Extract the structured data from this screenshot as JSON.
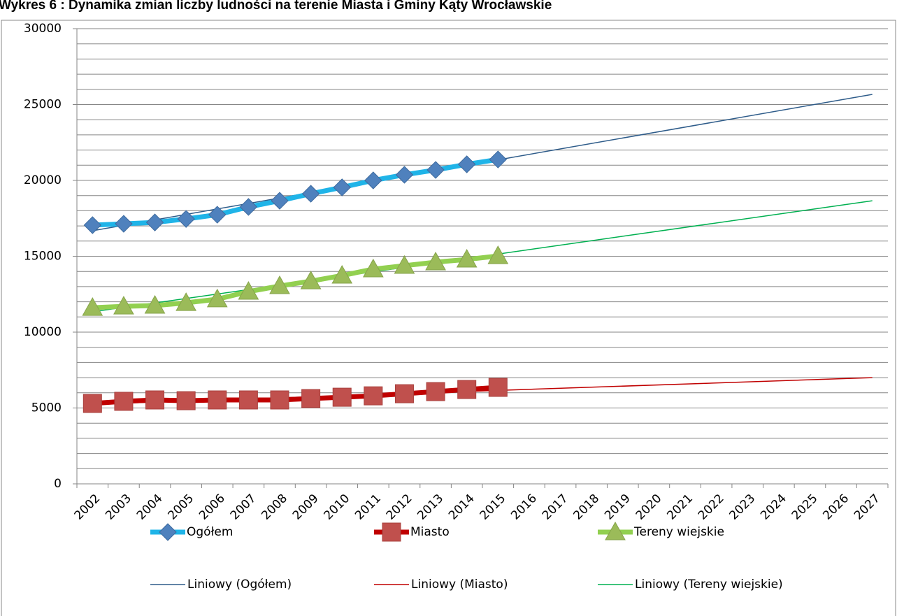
{
  "chart_data": {
    "type": "line",
    "title": "Wykres 6 : Dynamika zmian liczby ludności na terenie Miasta i Gminy Kąty Wrocławskie",
    "categories": [
      "2002",
      "2003",
      "2004",
      "2005",
      "2006",
      "2007",
      "2008",
      "2009",
      "2010",
      "2011",
      "2012",
      "2013",
      "2014",
      "2015",
      "2016",
      "2017",
      "2018",
      "2019",
      "2020",
      "2021",
      "2022",
      "2023",
      "2024",
      "2025",
      "2026",
      "2027"
    ],
    "ylim": [
      0,
      30000
    ],
    "yticks": [
      0,
      5000,
      10000,
      15000,
      20000,
      25000,
      30000
    ],
    "ygrid": [
      0,
      1000,
      2000,
      3000,
      4000,
      5000,
      6000,
      7000,
      8000,
      9000,
      10000,
      11000,
      12000,
      13000,
      14000,
      15000,
      16000,
      17000,
      18000,
      19000,
      20000,
      21000,
      22000,
      23000,
      24000,
      25000,
      26000,
      27000,
      28000,
      29000,
      30000
    ],
    "grid": true,
    "series": [
      {
        "name": "Ogółem",
        "color": "#1fb4e8",
        "marker": "diamond",
        "marker_color": "#4f81bd",
        "values": [
          17050,
          17140,
          17230,
          17460,
          17740,
          18250,
          18660,
          19120,
          19540,
          20000,
          20370,
          20690,
          21060,
          21380,
          null,
          null,
          null,
          null,
          null,
          null,
          null,
          null,
          null,
          null,
          null,
          null
        ]
      },
      {
        "name": "Miasto",
        "color": "#c00000",
        "marker": "square",
        "marker_color": "#c0504d",
        "values": [
          5300,
          5440,
          5530,
          5480,
          5530,
          5530,
          5530,
          5620,
          5710,
          5800,
          5940,
          6080,
          6220,
          6360,
          null,
          null,
          null,
          null,
          null,
          null,
          null,
          null,
          null,
          null,
          null,
          null
        ]
      },
      {
        "name": "Tereny wiejskie",
        "color": "#92d050",
        "marker": "triangle",
        "marker_color": "#9bbb59",
        "values": [
          11610,
          11700,
          11750,
          11930,
          12170,
          12670,
          13040,
          13360,
          13730,
          14150,
          14380,
          14610,
          14790,
          15020,
          null,
          null,
          null,
          null,
          null,
          null,
          null,
          null,
          null,
          null,
          null,
          null
        ]
      }
    ],
    "trendlines": [
      {
        "name": "Liniowy (Ogółem)",
        "color": "#2e5c8a",
        "categories": [
          "2002",
          "2027"
        ],
        "values": [
          16680,
          25670
        ]
      },
      {
        "name": "Liniowy (Miasto)",
        "color": "#c00000",
        "categories": [
          "2002",
          "2027"
        ],
        "values": [
          5250,
          7000
        ]
      },
      {
        "name": "Liniowy (Tereny wiejskie)",
        "color": "#00b050",
        "categories": [
          "2002",
          "2027"
        ],
        "values": [
          11340,
          18660
        ]
      }
    ]
  }
}
